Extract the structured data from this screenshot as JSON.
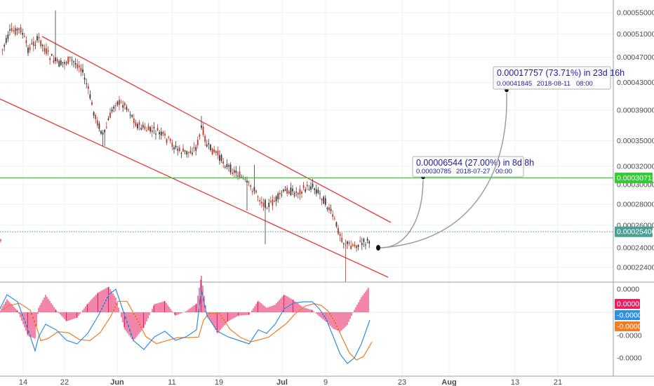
{
  "chart_data": {
    "type": "candlestick",
    "price_axis": {
      "ticks": [
        "0.00055000",
        "0.00051000",
        "0.00047000",
        "0.00043000",
        "0.00039000",
        "0.00035000",
        "0.00032000",
        "0.00030000",
        "0.00028000",
        "0.00026000",
        "0.00024000",
        "0.00022400"
      ],
      "scale": "log"
    },
    "time_axis": {
      "ticks": [
        "14",
        "22",
        "Jun",
        "11",
        "19",
        "Jul",
        "9",
        "23",
        "Aug",
        "13",
        "21"
      ],
      "bold_ticks": [
        "Jun",
        "Jul",
        "Aug"
      ]
    },
    "badges": {
      "horizontal_line_value": "0.00030711",
      "last_price": "0.00025400",
      "macd_zero": "0.0000",
      "macd_line": "-0.0000",
      "signal_line": "-0.0000"
    },
    "lines": {
      "horizontal_line": 0.00030711,
      "current_price": 0.000254
    },
    "projections": [
      {
        "main": "0.00006544 (27.00%) in 8d 8h",
        "price": "0.00030785",
        "date": "2018-07-27",
        "time": "00:00",
        "target_value": 0.00030785
      },
      {
        "main": "0.00017757 (73.71%) in 23d 16h",
        "price": "0.00041845",
        "date": "2018-08-11",
        "time": "08:00",
        "target_value": 0.00041845
      }
    ],
    "indicator": {
      "name": "MACD",
      "axis_ticks": [
        "0.0000",
        "-0.0000",
        "-0.0000"
      ]
    },
    "colors": {
      "channel": "#e53935",
      "horizontal_line": "#33cc33",
      "current_price": "#4aa093",
      "projection_text": "#1a1aa8",
      "macd_line": "#2f8fe0",
      "signal_line": "#ef7d22",
      "histogram": "#e91e63",
      "candle_up": "#3a3a3a",
      "candle_down": "#c0392b"
    }
  }
}
